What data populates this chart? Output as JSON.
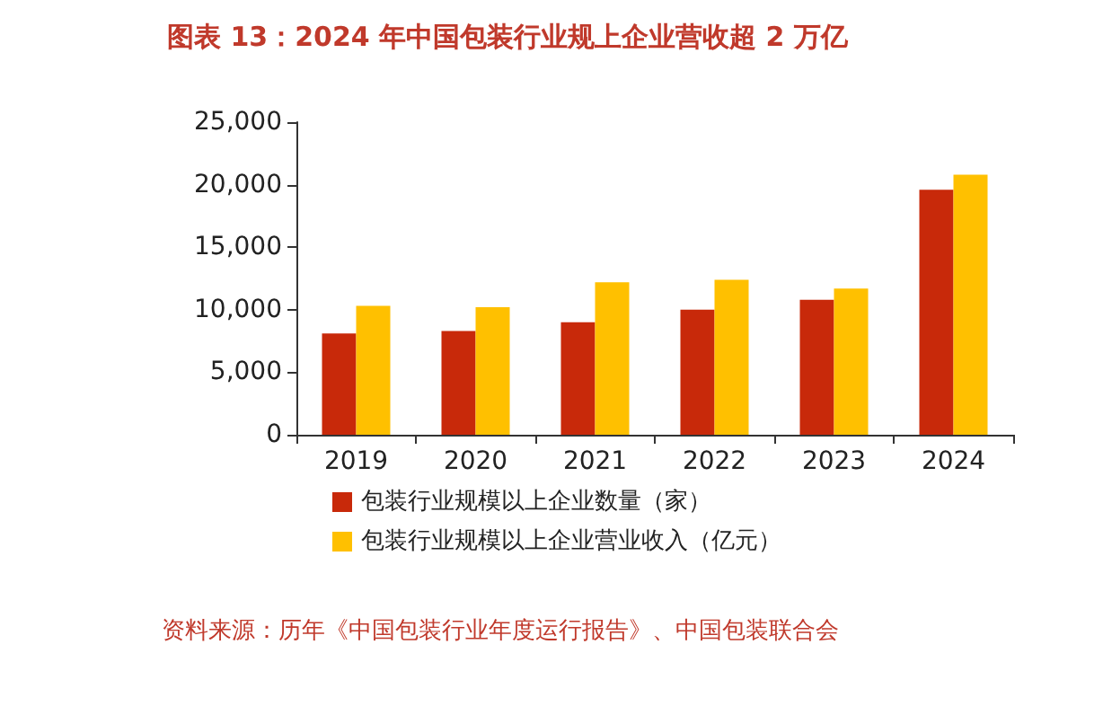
{
  "chart_data": {
    "type": "bar",
    "title": "图表 13：2024 年中国包装行业规上企业营收超 2 万亿",
    "categories": [
      "2019",
      "2020",
      "2021",
      "2022",
      "2023",
      "2024"
    ],
    "series": [
      {
        "name": "包装行业规模以上企业数量（家）",
        "color": "#c8290a",
        "values": [
          8100,
          8300,
          9000,
          10000,
          10800,
          19600
        ]
      },
      {
        "name": "包装行业规模以上企业营业收入（亿元）",
        "color": "#ffc000",
        "values": [
          10300,
          10200,
          12200,
          12400,
          11700,
          20800
        ]
      }
    ],
    "ylim": [
      0,
      25000
    ],
    "yticks": [
      0,
      {
        "value": 5000,
        "label": "5,000"
      },
      {
        "value": 10000,
        "label": "10,000"
      },
      {
        "value": 15000,
        "label": "15,000"
      },
      {
        "value": 20000,
        "label": "20,000"
      },
      {
        "value": 25000,
        "label": "25,000"
      }
    ],
    "grid": false,
    "legend": "bottom left",
    "annotations": [
      "资料来源：历年《中国包装行业年度运行报告》、中国包装联合会"
    ]
  }
}
